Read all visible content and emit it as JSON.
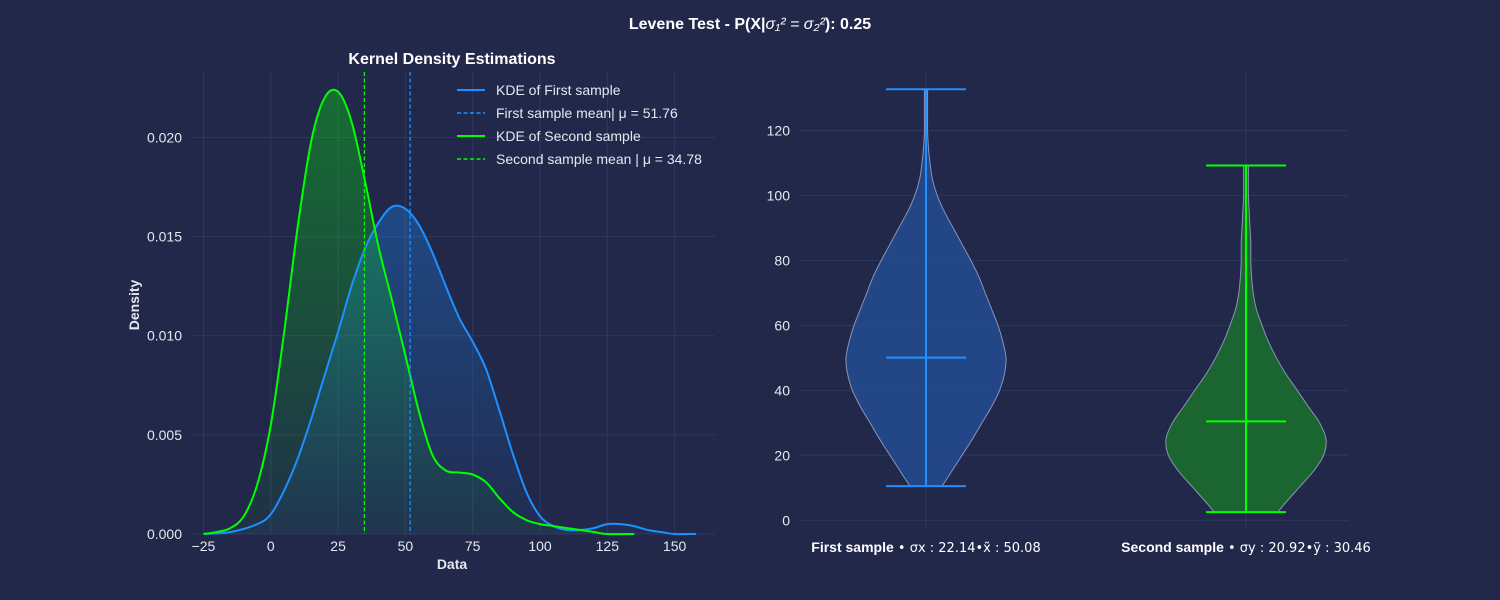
{
  "figure": {
    "title_prefix": "Levene Test - P(X|",
    "title_math": "σ₁² = σ₂²",
    "title_suffix": "): 0.25"
  },
  "chart_data": [
    {
      "type": "line",
      "title": "Kernel Density Estimations",
      "xlabel": "Data",
      "ylabel": "Density",
      "xlim": [
        -30,
        165
      ],
      "ylim": [
        0,
        0.0233
      ],
      "xticks": [
        -25,
        0,
        25,
        50,
        75,
        100,
        125,
        150
      ],
      "xtick_labels": [
        "−25",
        "0",
        "25",
        "50",
        "75",
        "100",
        "125",
        "150"
      ],
      "yticks": [
        0,
        0.005,
        0.01,
        0.015,
        0.02
      ],
      "ytick_labels": [
        "0.000",
        "0.005",
        "0.010",
        "0.015",
        "0.020"
      ],
      "grid": true,
      "legend_position": "top-right",
      "series": [
        {
          "name": "KDE of First sample",
          "color": "#1e90ff",
          "x": [
            -25,
            -15,
            -5,
            0,
            5,
            10,
            15,
            20,
            25,
            30,
            35,
            40,
            45,
            50,
            55,
            60,
            65,
            70,
            75,
            80,
            85,
            90,
            95,
            100,
            105,
            110,
            115,
            120,
            125,
            130,
            135,
            140,
            145,
            150,
            158
          ],
          "y": [
            0.0,
            0.0001,
            0.0005,
            0.001,
            0.0022,
            0.0038,
            0.0058,
            0.008,
            0.0102,
            0.0125,
            0.0144,
            0.0157,
            0.0165,
            0.0164,
            0.0156,
            0.0142,
            0.0125,
            0.0109,
            0.0097,
            0.0083,
            0.0062,
            0.004,
            0.0021,
            0.0009,
            0.0004,
            0.0002,
            0.0002,
            0.0003,
            0.0005,
            0.0005,
            0.0004,
            0.0002,
            0.0001,
            0.0,
            0.0
          ]
        },
        {
          "name": "KDE of Second sample",
          "color": "#00ff00",
          "x": [
            -25,
            -20,
            -15,
            -10,
            -5,
            0,
            5,
            10,
            15,
            20,
            25,
            30,
            35,
            40,
            45,
            50,
            55,
            60,
            65,
            70,
            75,
            80,
            85,
            90,
            95,
            100,
            105,
            110,
            115,
            120,
            125,
            135
          ],
          "y": [
            0.0,
            0.0001,
            0.0003,
            0.0009,
            0.0025,
            0.0055,
            0.0102,
            0.0155,
            0.0198,
            0.022,
            0.0223,
            0.0208,
            0.0178,
            0.0145,
            0.0118,
            0.009,
            0.0062,
            0.004,
            0.0032,
            0.0031,
            0.003,
            0.0026,
            0.0018,
            0.0011,
            0.0007,
            0.0005,
            0.0004,
            0.0003,
            0.0002,
            0.0001,
            0.0,
            0.0
          ]
        }
      ],
      "vlines": [
        {
          "name": "First sample mean| μ = 51.76",
          "x": 51.76,
          "color": "#1e90ff"
        },
        {
          "name": "Second sample mean | μ = 34.78",
          "x": 34.78,
          "color": "#00ff00"
        }
      ]
    },
    {
      "type": "violin",
      "ylim": [
        -3,
        138
      ],
      "yticks": [
        0,
        20,
        40,
        60,
        80,
        100,
        120
      ],
      "ytick_labels": [
        "0",
        "20",
        "40",
        "60",
        "80",
        "100",
        "120"
      ],
      "grid": true,
      "series": [
        {
          "name": "First sample",
          "label_bold": "First sample",
          "label_rest": " • σx : 22.14•x̃ : 50.08",
          "color": "#1e90ff",
          "fill": "#24498b",
          "min": 10.5,
          "median": 50.08,
          "max": 132.7,
          "profile_y": [
            10.5,
            15,
            20,
            25,
            30,
            35,
            40,
            45,
            50,
            55,
            60,
            65,
            70,
            75,
            80,
            85,
            90,
            95,
            100,
            105,
            110,
            115,
            120,
            125,
            132.7
          ],
          "profile_w": [
            0.2,
            0.32,
            0.45,
            0.58,
            0.7,
            0.82,
            0.92,
            0.98,
            1.0,
            0.96,
            0.9,
            0.82,
            0.74,
            0.66,
            0.56,
            0.45,
            0.34,
            0.23,
            0.14,
            0.08,
            0.05,
            0.03,
            0.02,
            0.02,
            0.02
          ]
        },
        {
          "name": "Second sample",
          "label_bold": "Second sample",
          "label_rest": " • σy : 20.92•ỹ : 30.46",
          "color": "#00ff00",
          "fill": "#1b6b2e",
          "min": 2.5,
          "median": 30.46,
          "max": 109.2,
          "profile_y": [
            2.5,
            5,
            10,
            15,
            20,
            25,
            30,
            35,
            40,
            45,
            50,
            55,
            60,
            65,
            70,
            75,
            80,
            85,
            90,
            95,
            100,
            105,
            109.2
          ],
          "profile_w": [
            0.4,
            0.48,
            0.66,
            0.84,
            0.97,
            1.0,
            0.92,
            0.78,
            0.64,
            0.5,
            0.38,
            0.28,
            0.2,
            0.13,
            0.09,
            0.07,
            0.06,
            0.06,
            0.05,
            0.04,
            0.03,
            0.03,
            0.03
          ]
        }
      ]
    }
  ]
}
